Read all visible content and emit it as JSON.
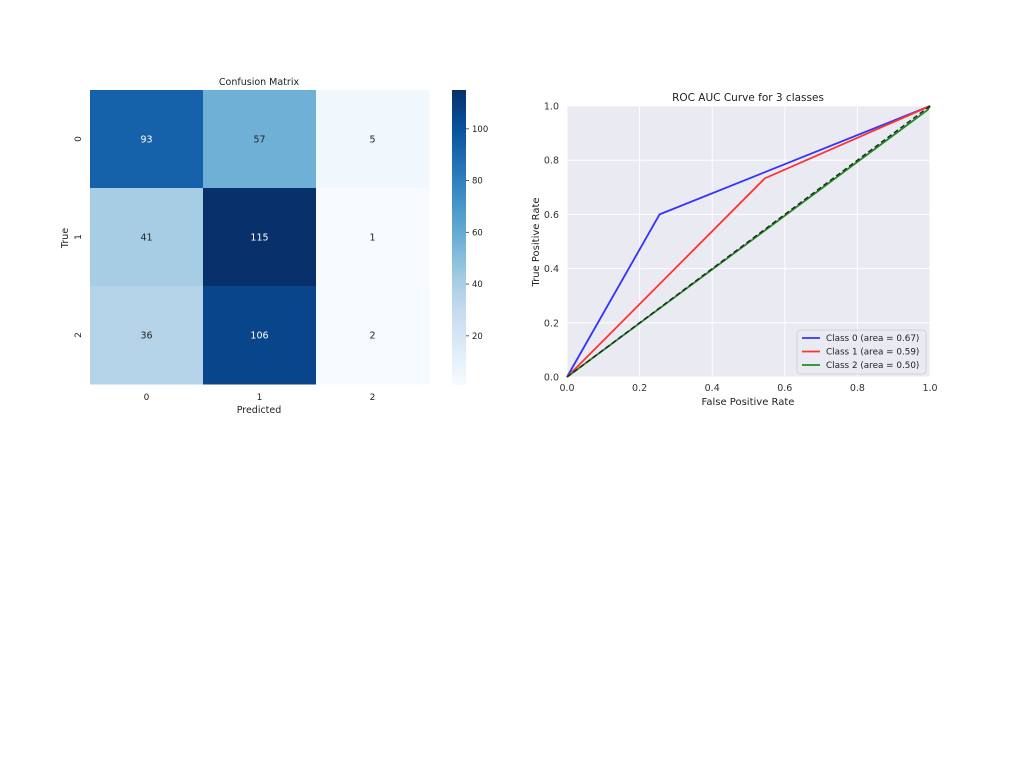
{
  "chart_data": [
    {
      "type": "heatmap",
      "title": "Confusion Matrix",
      "xlabel": "Predicted",
      "ylabel": "True",
      "x_categories": [
        "0",
        "1",
        "2"
      ],
      "y_categories": [
        "0",
        "1",
        "2"
      ],
      "values": [
        [
          93,
          57,
          5
        ],
        [
          41,
          115,
          1
        ],
        [
          36,
          106,
          2
        ]
      ],
      "colormap": "Blues",
      "colorbar": {
        "range": [
          1,
          115
        ],
        "ticks": [
          20,
          40,
          60,
          80,
          100
        ]
      },
      "annotated": true
    },
    {
      "type": "line",
      "title": "ROC AUC Curve for 3 classes",
      "xlabel": "False Positive Rate",
      "ylabel": "True Positive Rate",
      "xlim": [
        0.0,
        1.0
      ],
      "ylim": [
        0.0,
        1.0
      ],
      "xticks": [
        "0.0",
        "0.2",
        "0.4",
        "0.6",
        "0.8",
        "1.0"
      ],
      "yticks": [
        "0.0",
        "0.2",
        "0.4",
        "0.6",
        "0.8",
        "1.0"
      ],
      "grid": true,
      "background": "#eaeaf2",
      "legend_position": "lower-right",
      "series": [
        {
          "name": "Class 0 (area = 0.67)",
          "color": "#3333ff",
          "x": [
            0.0,
            0.255,
            1.0
          ],
          "y": [
            0.0,
            0.6,
            1.0
          ]
        },
        {
          "name": "Class 1 (area = 0.59)",
          "color": "#ff3333",
          "x": [
            0.0,
            0.545,
            1.0
          ],
          "y": [
            0.0,
            0.733,
            1.0
          ]
        },
        {
          "name": "Class 2 (area = 0.50)",
          "color": "#228b22",
          "x": [
            0.0,
            0.994,
            1.0
          ],
          "y": [
            0.0,
            0.986,
            1.0
          ]
        }
      ],
      "reference_line": {
        "color": "#222222",
        "style": "dashed",
        "x": [
          0.0,
          1.0
        ],
        "y": [
          0.0,
          1.0
        ]
      }
    }
  ]
}
